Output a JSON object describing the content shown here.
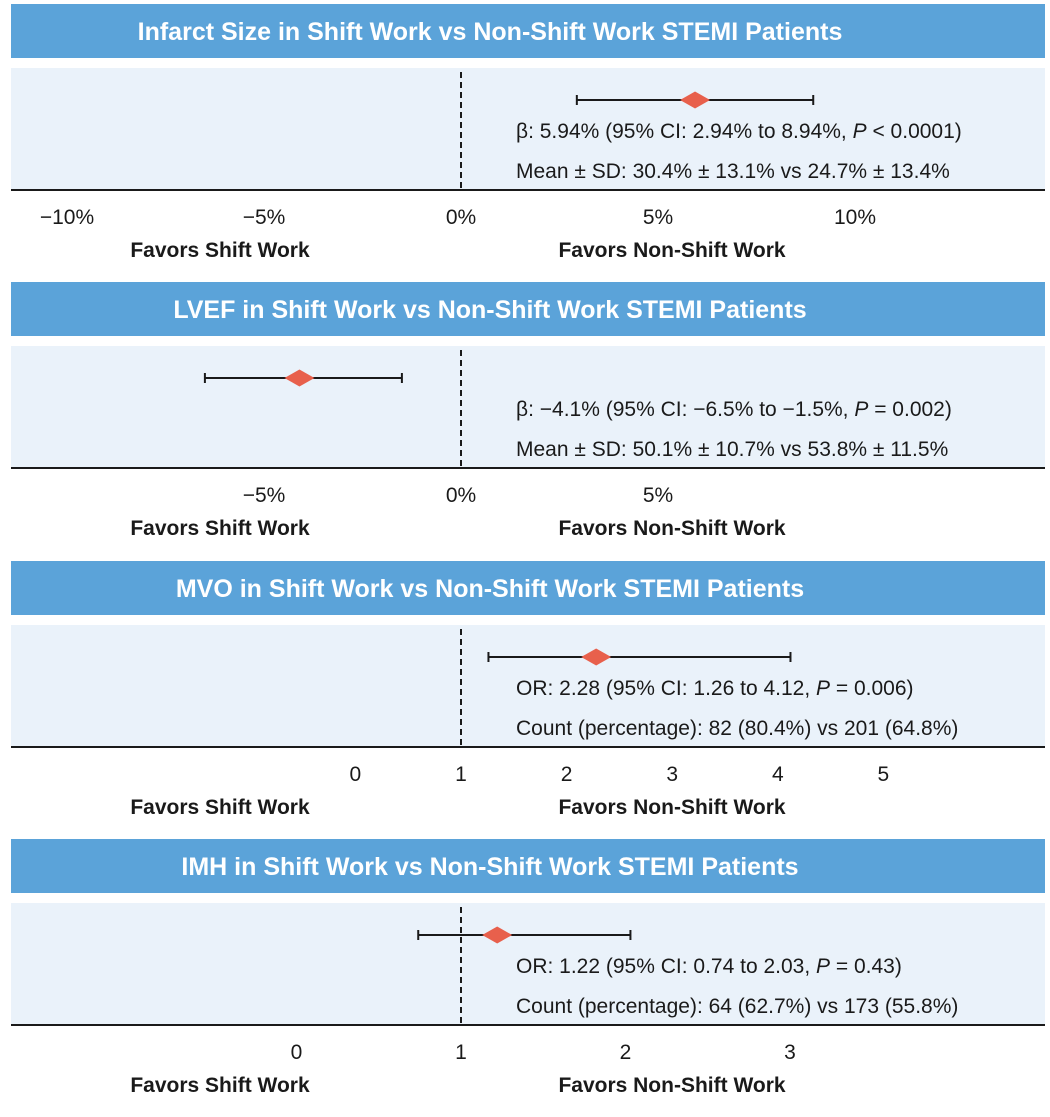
{
  "colors": {
    "title_bg": "#5ba3d9",
    "plot_bg": "#eaf2fa",
    "marker": "#e8604c",
    "line": "#1a1a1a"
  },
  "chart_data": [
    {
      "type": "forest",
      "title": "Infarct Size in Shift Work vs Non-Shift Work STEMI Patients",
      "ref": 0,
      "ticks": [
        -10,
        -5,
        0,
        5,
        10
      ],
      "tick_labels": [
        "−10%",
        "−5%",
        "0%",
        "5%",
        "10%"
      ],
      "estimate": 5.94,
      "ci": [
        2.94,
        8.94
      ],
      "stat_prefix": "β: 5.94% (95% CI: 2.94% to 8.94%, ",
      "stat_p_label": "P",
      "stat_suffix": " < 0.0001)",
      "detail": "Mean ± SD: 30.4% ± 13.1% vs 24.7% ± 13.4%",
      "left_label": "Favors Shift Work",
      "right_label": "Favors Non-Shift Work"
    },
    {
      "type": "forest",
      "title": "LVEF in Shift Work vs Non-Shift Work STEMI Patients",
      "ref": 0,
      "ticks": [
        -5,
        0,
        5
      ],
      "tick_labels": [
        "−5%",
        "0%",
        "5%"
      ],
      "estimate": -4.1,
      "ci": [
        -6.5,
        -1.5
      ],
      "stat_prefix": "β: −4.1% (95% CI: −6.5% to −1.5%, ",
      "stat_p_label": "P",
      "stat_suffix": " = 0.002)",
      "detail": "Mean ± SD: 50.1% ± 10.7% vs 53.8% ± 11.5%",
      "left_label": "Favors Shift Work",
      "right_label": "Favors Non-Shift Work"
    },
    {
      "type": "forest",
      "title": "MVO in Shift Work vs Non-Shift Work STEMI Patients",
      "ref": 1,
      "ticks": [
        0,
        1,
        2,
        3,
        4,
        5
      ],
      "tick_labels": [
        "0",
        "1",
        "2",
        "3",
        "4",
        "5"
      ],
      "estimate": 2.28,
      "ci": [
        1.26,
        4.12
      ],
      "stat_prefix": "OR: 2.28 (95% CI: 1.26 to 4.12, ",
      "stat_p_label": "P",
      "stat_suffix": " = 0.006)",
      "detail": "Count (percentage): 82 (80.4%) vs 201 (64.8%)",
      "left_label": "Favors Shift Work",
      "right_label": "Favors Non-Shift Work"
    },
    {
      "type": "forest",
      "title": "IMH in Shift Work vs Non-Shift Work STEMI Patients",
      "ref": 1,
      "ticks": [
        0,
        1,
        2,
        3
      ],
      "tick_labels": [
        "0",
        "1",
        "2",
        "3"
      ],
      "estimate": 1.22,
      "ci": [
        0.74,
        2.03
      ],
      "stat_prefix": "OR: 1.22 (95% CI: 0.74 to 2.03, ",
      "stat_p_label": "P",
      "stat_suffix": " = 0.43)",
      "detail": "Count (percentage): 64 (62.7%) vs 173 (55.8%)",
      "left_label": "Favors Shift Work",
      "right_label": "Favors Non-Shift Work"
    }
  ]
}
